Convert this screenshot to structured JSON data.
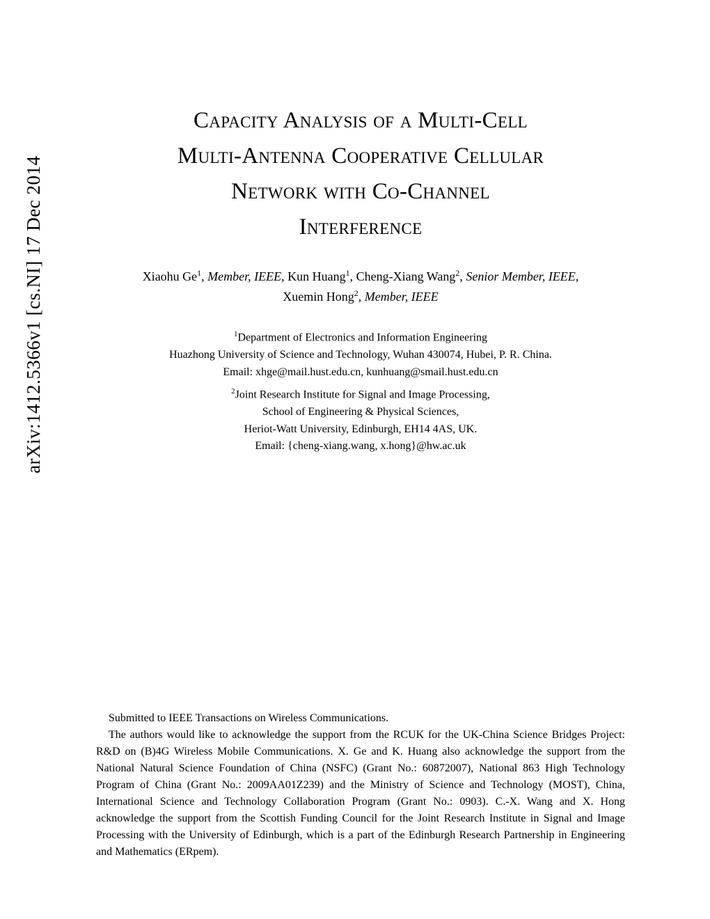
{
  "arxiv_stamp": "arXiv:1412.5366v1  [cs.NI]  17 Dec 2014",
  "title_line1": "Capacity Analysis of a Multi-Cell",
  "title_line2": "Multi-Antenna Cooperative Cellular",
  "title_line3": "Network with Co-Channel",
  "title_line4": "Interference",
  "authors": {
    "a1_name": "Xiaohu Ge",
    "a1_sup": "1",
    "a1_role": "Member, IEEE",
    "a2_name": "Kun Huang",
    "a2_sup": "1",
    "a3_name": "Cheng-Xiang Wang",
    "a3_sup": "2",
    "a3_role": "Senior Member, IEEE",
    "a4_name": "Xuemin Hong",
    "a4_sup": "2",
    "a4_role": "Member, IEEE"
  },
  "affil1": {
    "sup": "1",
    "line1": "Department of Electronics and Information Engineering",
    "line2": "Huazhong University of Science and Technology, Wuhan 430074, Hubei, P. R. China.",
    "line3": "Email: xhge@mail.hust.edu.cn, kunhuang@smail.hust.edu.cn"
  },
  "affil2": {
    "sup": "2",
    "line1": "Joint Research Institute for Signal and Image Processing,",
    "line2": "School of Engineering & Physical Sciences,",
    "line3": "Heriot-Watt University, Edinburgh, EH14 4AS, UK.",
    "line4": "Email: {cheng-xiang.wang, x.hong}@hw.ac.uk"
  },
  "footer": {
    "p1": "Submitted to IEEE Transactions on Wireless Communications.",
    "p2": "The authors would like to acknowledge the support from the RCUK for the UK-China Science Bridges Project: R&D on (B)4G Wireless Mobile Communications. X. Ge and K. Huang also acknowledge the support from the National Natural Science Foundation of China (NSFC) (Grant No.: 60872007), National 863 High Technology Program of China (Grant No.: 2009AA01Z239) and the Ministry of Science and Technology (MOST), China, International Science and Technology Collaboration Program (Grant No.: 0903). C.-X. Wang and X. Hong acknowledge the support from the Scottish Funding Council for the Joint Research Institute in Signal and Image Processing with the University of Edinburgh, which is a part of the Edinburgh Research Partnership in Engineering and Mathematics (ERpem)."
  }
}
